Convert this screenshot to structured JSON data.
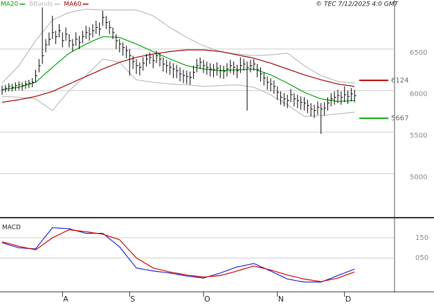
{
  "chart_data": [
    {
      "type": "ohlc",
      "credit": "© TEC 7/12/2025 4:0 GMT",
      "color": "#000000",
      "ylim": [
        4480,
        7090
      ],
      "yticks": [
        5000,
        5500,
        6000,
        6500
      ],
      "grid": true,
      "high": [
        6060,
        6070,
        6090,
        6080,
        6100,
        6110,
        6100,
        6120,
        6130,
        6150,
        6250,
        6380,
        7000,
        6620,
        6700,
        6900,
        6720,
        6800,
        6700,
        6760,
        6680,
        6620,
        6700,
        6660,
        6720,
        6780,
        6760,
        6800,
        6840,
        6820,
        6960,
        6900,
        6840,
        6760,
        6680,
        6620,
        6580,
        6540,
        6500,
        6420,
        6380,
        6340,
        6400,
        6440,
        6460,
        6430,
        6480,
        6450,
        6400,
        6370,
        6350,
        6330,
        6310,
        6280,
        6250,
        6240,
        6230,
        6300,
        6380,
        6400,
        6370,
        6350,
        6330,
        6320,
        6340,
        6310,
        6300,
        6330,
        6370,
        6350,
        6310,
        6400,
        6380,
        6350,
        6370,
        6380,
        6320,
        6280,
        6220,
        6170,
        6150,
        6120,
        6050,
        5990,
        5970,
        5950,
        6020,
        5970,
        5950,
        5930,
        5920,
        5890,
        5850,
        5830,
        5870,
        5850,
        5860,
        5920,
        5970,
        5990,
        6010,
        5990,
        6050,
        6000,
        6030,
        6010
      ],
      "low": [
        5950,
        5980,
        5990,
        5990,
        6000,
        6010,
        6000,
        6020,
        6030,
        6040,
        6100,
        6220,
        6320,
        6460,
        6540,
        6620,
        6560,
        6640,
        6520,
        6600,
        6520,
        6470,
        6540,
        6500,
        6570,
        6620,
        6600,
        6640,
        6680,
        6660,
        6780,
        6740,
        6680,
        6620,
        6500,
        6460,
        6420,
        6390,
        6180,
        6260,
        6200,
        6180,
        6240,
        6290,
        6320,
        6270,
        6330,
        6290,
        6230,
        6210,
        6190,
        6150,
        6150,
        6110,
        6090,
        6080,
        6070,
        6140,
        6220,
        6260,
        6210,
        6190,
        6170,
        6160,
        6180,
        6150,
        6140,
        6170,
        6210,
        6190,
        6150,
        6210,
        6240,
        5760,
        6220,
        6240,
        6160,
        6110,
        6060,
        6010,
        5990,
        5960,
        5890,
        5830,
        5810,
        5790,
        5860,
        5810,
        5790,
        5770,
        5760,
        5730,
        5690,
        5670,
        5710,
        5480,
        5700,
        5760,
        5810,
        5830,
        5850,
        5830,
        5860,
        5840,
        5870,
        5860
      ],
      "close": [
        6010,
        6030,
        6050,
        6040,
        6060,
        6070,
        6060,
        6080,
        6090,
        6100,
        6180,
        6300,
        6420,
        6550,
        6620,
        6700,
        6650,
        6720,
        6600,
        6680,
        6600,
        6550,
        6620,
        6580,
        6650,
        6700,
        6680,
        6720,
        6760,
        6740,
        6880,
        6820,
        6760,
        6700,
        6600,
        6560,
        6520,
        6480,
        6420,
        6350,
        6300,
        6280,
        6330,
        6380,
        6400,
        6360,
        6420,
        6380,
        6320,
        6300,
        6280,
        6260,
        6240,
        6200,
        6180,
        6170,
        6160,
        6220,
        6300,
        6340,
        6300,
        6280,
        6260,
        6250,
        6270,
        6240,
        6230,
        6260,
        6300,
        6280,
        6240,
        6300,
        6320,
        6280,
        6300,
        6320,
        6250,
        6200,
        6150,
        6100,
        6080,
        6050,
        5980,
        5920,
        5900,
        5880,
        5950,
        5900,
        5880,
        5860,
        5850,
        5820,
        5780,
        5760,
        5800,
        5780,
        5790,
        5850,
        5900,
        5920,
        5940,
        5920,
        5950,
        5930,
        5960,
        5940
      ],
      "series": [
        {
          "name": "MA20",
          "color": "#00a000",
          "values": [
            6010,
            6016,
            6022,
            6028,
            6034,
            6040,
            6052,
            6064,
            6076,
            6088,
            6100,
            6136,
            6172,
            6208,
            6244,
            6280,
            6314,
            6348,
            6382,
            6416,
            6450,
            6472,
            6494,
            6516,
            6538,
            6560,
            6578,
            6596,
            6614,
            6632,
            6650,
            6648,
            6646,
            6644,
            6642,
            6640,
            6624,
            6608,
            6592,
            6576,
            6560,
            6542,
            6524,
            6506,
            6488,
            6470,
            6452,
            6434,
            6416,
            6398,
            6380,
            6364,
            6348,
            6332,
            6316,
            6300,
            6292,
            6284,
            6276,
            6268,
            6260,
            6256,
            6252,
            6248,
            6244,
            6240,
            6242,
            6244,
            6246,
            6248,
            6250,
            6252,
            6254,
            6256,
            6258,
            6260,
            6246,
            6232,
            6218,
            6204,
            6190,
            6170,
            6150,
            6130,
            6110,
            6090,
            6068,
            6046,
            6024,
            6002,
            5980,
            5964,
            5948,
            5932,
            5916,
            5900,
            5894,
            5888,
            5882,
            5876,
            5870,
            5872,
            5874,
            5876,
            5878,
            5880
          ]
        },
        {
          "name": "BBands",
          "color": "#bbbbbb",
          "upper": [
            6090,
            6132,
            6174,
            6216,
            6258,
            6300,
            6360,
            6420,
            6480,
            6540,
            6600,
            6650,
            6700,
            6750,
            6800,
            6850,
            6868,
            6886,
            6904,
            6922,
            6940,
            6948,
            6956,
            6964,
            6972,
            6980,
            6978,
            6976,
            6974,
            6972,
            6970,
            6970,
            6970,
            6970,
            6970,
            6970,
            6970,
            6970,
            6970,
            6970,
            6970,
            6956,
            6942,
            6928,
            6914,
            6900,
            6872,
            6844,
            6816,
            6788,
            6760,
            6736,
            6712,
            6688,
            6664,
            6640,
            6620,
            6600,
            6580,
            6560,
            6540,
            6526,
            6512,
            6498,
            6484,
            6470,
            6464,
            6458,
            6452,
            6446,
            6440,
            6436,
            6432,
            6428,
            6424,
            6420,
            6422,
            6424,
            6426,
            6428,
            6430,
            6434,
            6438,
            6442,
            6446,
            6450,
            6420,
            6390,
            6360,
            6330,
            6300,
            6276,
            6252,
            6228,
            6204,
            6180,
            6166,
            6152,
            6138,
            6124,
            6110,
            6106,
            6102,
            6098,
            6094,
            6090
          ],
          "lower": [
            5930,
            5928,
            5926,
            5924,
            5922,
            5920,
            5916,
            5912,
            5908,
            5904,
            5900,
            5872,
            5844,
            5816,
            5788,
            5760,
            5808,
            5856,
            5904,
            5952,
            6000,
            6036,
            6072,
            6108,
            6144,
            6180,
            6220,
            6260,
            6300,
            6340,
            6380,
            6372,
            6364,
            6356,
            6348,
            6340,
            6298,
            6256,
            6214,
            6172,
            6130,
            6124,
            6118,
            6112,
            6106,
            6100,
            6096,
            6092,
            6088,
            6084,
            6080,
            6078,
            6076,
            6074,
            6072,
            6070,
            6066,
            6062,
            6058,
            6054,
            6050,
            6052,
            6054,
            6056,
            6058,
            6060,
            6062,
            6064,
            6066,
            6068,
            6070,
            6064,
            6058,
            6052,
            6046,
            6040,
            6022,
            6004,
            5986,
            5968,
            5950,
            5926,
            5902,
            5878,
            5854,
            5830,
            5802,
            5774,
            5746,
            5718,
            5690,
            5692,
            5694,
            5696,
            5698,
            5700,
            5704,
            5708,
            5712,
            5716,
            5720,
            5724,
            5728,
            5732,
            5736,
            5740
          ]
        },
        {
          "name": "MA60",
          "color": "#a00000",
          "values": [
            5860,
            5866,
            5872,
            5878,
            5884,
            5890,
            5898,
            5906,
            5914,
            5922,
            5930,
            5942,
            5954,
            5966,
            5978,
            5990,
            6008,
            6026,
            6044,
            6062,
            6080,
            6098,
            6116,
            6134,
            6152,
            6170,
            6188,
            6206,
            6224,
            6242,
            6260,
            6276,
            6292,
            6308,
            6324,
            6340,
            6352,
            6364,
            6376,
            6388,
            6400,
            6408,
            6416,
            6424,
            6432,
            6440,
            6446,
            6452,
            6458,
            6464,
            6470,
            6474,
            6478,
            6482,
            6486,
            6490,
            6490,
            6490,
            6490,
            6490,
            6490,
            6486,
            6482,
            6478,
            6474,
            6470,
            6462,
            6454,
            6446,
            6438,
            6430,
            6422,
            6414,
            6406,
            6398,
            6390,
            6378,
            6366,
            6354,
            6342,
            6330,
            6316,
            6302,
            6288,
            6274,
            6260,
            6246,
            6232,
            6218,
            6204,
            6190,
            6178,
            6166,
            6154,
            6142,
            6130,
            6120,
            6110,
            6100,
            6090,
            6080,
            6074,
            6068,
            6062,
            6056,
            6050
          ]
        }
      ],
      "levels": [
        {
          "value": 6124,
          "color": "#c00000"
        },
        {
          "value": 5667,
          "color": "#00a000"
        }
      ]
    },
    {
      "type": "macd",
      "title": "MACD",
      "ylim": [
        -115,
        243
      ],
      "yticks": [
        150,
        {
          "value": 50,
          "label": "050"
        }
      ],
      "grid": true,
      "categories": [
        null,
        null,
        null,
        null,
        null,
        null,
        null,
        null,
        null,
        null,
        null,
        null,
        null,
        null,
        null,
        null,
        null,
        null,
        "A",
        null,
        null,
        null,
        null,
        null,
        null,
        null,
        null,
        null,
        null,
        null,
        null,
        null,
        null,
        null,
        null,
        null,
        null,
        null,
        "S",
        null,
        null,
        null,
        null,
        null,
        null,
        null,
        null,
        null,
        null,
        null,
        null,
        null,
        null,
        null,
        null,
        null,
        null,
        null,
        null,
        null,
        "O",
        null,
        null,
        null,
        null,
        null,
        null,
        null,
        null,
        null,
        null,
        null,
        null,
        null,
        null,
        null,
        null,
        null,
        null,
        null,
        null,
        null,
        "N",
        null,
        null,
        null,
        null,
        null,
        null,
        null,
        null,
        null,
        null,
        null,
        null,
        null,
        null,
        null,
        null,
        null,
        null,
        null,
        "D",
        null,
        null,
        null
      ],
      "series": [
        {
          "color": "#2424d0",
          "values": [
            125,
            120,
            115,
            110,
            105,
            100,
            99,
            98,
            97,
            96,
            95,
            116,
            137,
            158,
            179,
            200,
            199,
            198,
            197,
            196,
            195,
            190,
            186,
            181,
            177,
            172,
            172,
            172,
            172,
            172,
            172,
            159,
            145,
            132,
            118,
            105,
            84,
            63,
            42,
            21,
            0,
            -3,
            -6,
            -9,
            -12,
            -15,
            -17,
            -19,
            -21,
            -23,
            -25,
            -28,
            -31,
            -34,
            -37,
            -40,
            -42,
            -44,
            -46,
            -48,
            -50,
            -45,
            -40,
            -35,
            -30,
            -25,
            -19,
            -13,
            -7,
            -1,
            5,
            8,
            12,
            15,
            19,
            22,
            15,
            7,
            0,
            -8,
            -15,
            -23,
            -31,
            -39,
            -47,
            -55,
            -58,
            -61,
            -64,
            -67,
            -70,
            -70,
            -70,
            -70,
            -70,
            -70,
            -64,
            -57,
            -51,
            -44,
            -38,
            -31,
            -25,
            -18,
            -12,
            -5
          ]
        },
        {
          "color": "#d00000",
          "values": [
            130,
            126,
            121,
            117,
            112,
            108,
            104,
            101,
            97,
            94,
            90,
            102,
            114,
            126,
            138,
            150,
            158,
            166,
            174,
            182,
            190,
            188,
            186,
            184,
            182,
            180,
            178,
            175,
            173,
            170,
            168,
            162,
            157,
            151,
            146,
            140,
            122,
            104,
            86,
            68,
            50,
            40,
            30,
            20,
            10,
            0,
            -4,
            -8,
            -12,
            -16,
            -20,
            -23,
            -26,
            -29,
            -32,
            -35,
            -37,
            -39,
            -41,
            -43,
            -45,
            -44,
            -42,
            -41,
            -39,
            -38,
            -33,
            -29,
            -24,
            -20,
            -15,
            -10,
            -5,
            0,
            5,
            10,
            6,
            2,
            -2,
            -6,
            -10,
            -15,
            -20,
            -25,
            -30,
            -35,
            -39,
            -43,
            -47,
            -51,
            -55,
            -58,
            -60,
            -63,
            -65,
            -68,
            -64,
            -61,
            -57,
            -54,
            -50,
            -44,
            -38,
            -32,
            -26,
            -20
          ]
        }
      ]
    }
  ]
}
